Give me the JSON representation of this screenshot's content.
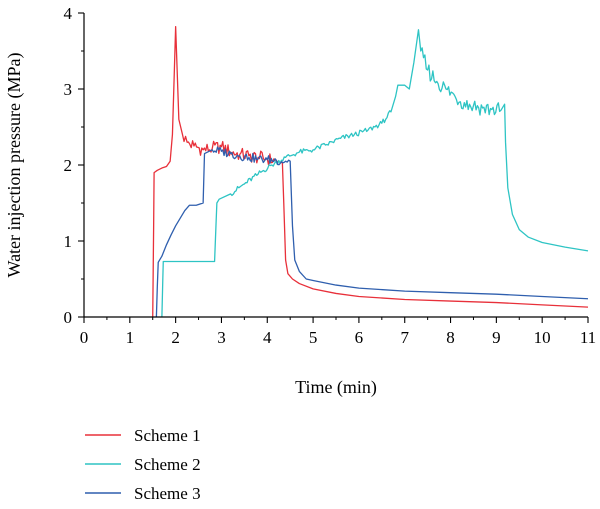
{
  "chart_data": {
    "type": "line",
    "title": "",
    "xlabel": "Time (min)",
    "ylabel": "Water injection pressure (MPa)",
    "xlim": [
      0,
      11
    ],
    "ylim": [
      0,
      4
    ],
    "x_ticks": [
      "0",
      "1",
      "2",
      "3",
      "4",
      "5",
      "6",
      "7",
      "8",
      "9",
      "10",
      "11"
    ],
    "y_ticks": [
      "0",
      "1",
      "2",
      "3",
      "4"
    ],
    "grid": false,
    "legend_position": "bottom-left, below plot",
    "series": [
      {
        "name": "Scheme 1",
        "color": "#e8303a",
        "points": [
          [
            1.5,
            0
          ],
          [
            1.52,
            1.2
          ],
          [
            1.53,
            1.9
          ],
          [
            1.6,
            1.93
          ],
          [
            1.7,
            1.96
          ],
          [
            1.8,
            1.98
          ],
          [
            1.88,
            2.05
          ],
          [
            1.93,
            2.4
          ],
          [
            1.97,
            3.2
          ],
          [
            2.0,
            3.82
          ],
          [
            2.03,
            3.3
          ],
          [
            2.07,
            2.6
          ],
          [
            2.15,
            2.4
          ],
          [
            2.25,
            2.3
          ],
          [
            2.4,
            2.25
          ],
          [
            2.6,
            2.2
          ],
          [
            2.8,
            2.22
          ],
          [
            3.0,
            2.24
          ],
          [
            3.2,
            2.17
          ],
          [
            3.4,
            2.14
          ],
          [
            3.6,
            2.12
          ],
          [
            3.8,
            2.1
          ],
          [
            4.0,
            2.08
          ],
          [
            4.2,
            2.05
          ],
          [
            4.33,
            2.03
          ],
          [
            4.36,
            1.5
          ],
          [
            4.4,
            0.75
          ],
          [
            4.45,
            0.57
          ],
          [
            4.55,
            0.5
          ],
          [
            4.7,
            0.44
          ],
          [
            5.0,
            0.37
          ],
          [
            5.5,
            0.31
          ],
          [
            6.0,
            0.27
          ],
          [
            7.0,
            0.23
          ],
          [
            8.0,
            0.21
          ],
          [
            9.0,
            0.19
          ],
          [
            10.0,
            0.16
          ],
          [
            11.0,
            0.13
          ]
        ]
      },
      {
        "name": "Scheme 2",
        "color": "#2ec4c4",
        "points": [
          [
            1.7,
            0
          ],
          [
            1.72,
            0.5
          ],
          [
            1.73,
            0.73
          ],
          [
            1.9,
            0.73
          ],
          [
            2.3,
            0.73
          ],
          [
            2.7,
            0.73
          ],
          [
            2.85,
            0.73
          ],
          [
            2.88,
            1.2
          ],
          [
            2.9,
            1.5
          ],
          [
            2.95,
            1.55
          ],
          [
            3.2,
            1.62
          ],
          [
            3.5,
            1.75
          ],
          [
            3.8,
            1.88
          ],
          [
            4.1,
            2.0
          ],
          [
            4.4,
            2.1
          ],
          [
            4.7,
            2.17
          ],
          [
            5.0,
            2.2
          ],
          [
            5.3,
            2.27
          ],
          [
            5.6,
            2.35
          ],
          [
            5.9,
            2.4
          ],
          [
            6.2,
            2.46
          ],
          [
            6.5,
            2.55
          ],
          [
            6.7,
            2.7
          ],
          [
            6.8,
            2.9
          ],
          [
            6.85,
            3.05
          ],
          [
            7.0,
            3.05
          ],
          [
            7.1,
            3.0
          ],
          [
            7.2,
            3.35
          ],
          [
            7.3,
            3.78
          ],
          [
            7.35,
            3.5
          ],
          [
            7.5,
            3.25
          ],
          [
            7.7,
            3.1
          ],
          [
            7.9,
            3.0
          ],
          [
            8.1,
            2.9
          ],
          [
            8.3,
            2.82
          ],
          [
            8.5,
            2.78
          ],
          [
            8.7,
            2.75
          ],
          [
            8.9,
            2.73
          ],
          [
            9.1,
            2.72
          ],
          [
            9.18,
            2.8
          ],
          [
            9.2,
            2.3
          ],
          [
            9.25,
            1.7
          ],
          [
            9.35,
            1.35
          ],
          [
            9.5,
            1.15
          ],
          [
            9.7,
            1.05
          ],
          [
            10.0,
            0.98
          ],
          [
            10.5,
            0.92
          ],
          [
            11.0,
            0.87
          ]
        ]
      },
      {
        "name": "Scheme 3",
        "color": "#2f5fae",
        "points": [
          [
            1.58,
            0
          ],
          [
            1.6,
            0.4
          ],
          [
            1.62,
            0.72
          ],
          [
            1.7,
            0.8
          ],
          [
            1.8,
            0.95
          ],
          [
            1.9,
            1.08
          ],
          [
            2.0,
            1.2
          ],
          [
            2.1,
            1.3
          ],
          [
            2.2,
            1.4
          ],
          [
            2.3,
            1.47
          ],
          [
            2.45,
            1.47
          ],
          [
            2.6,
            1.5
          ],
          [
            2.63,
            2.15
          ],
          [
            2.8,
            2.2
          ],
          [
            3.0,
            2.18
          ],
          [
            3.2,
            2.15
          ],
          [
            3.4,
            2.12
          ],
          [
            3.6,
            2.1
          ],
          [
            3.8,
            2.08
          ],
          [
            4.0,
            2.07
          ],
          [
            4.2,
            2.06
          ],
          [
            4.4,
            2.05
          ],
          [
            4.5,
            2.05
          ],
          [
            4.55,
            1.2
          ],
          [
            4.6,
            0.75
          ],
          [
            4.7,
            0.6
          ],
          [
            4.85,
            0.5
          ],
          [
            5.0,
            0.48
          ],
          [
            5.5,
            0.42
          ],
          [
            6.0,
            0.38
          ],
          [
            7.0,
            0.34
          ],
          [
            8.0,
            0.32
          ],
          [
            9.0,
            0.3
          ],
          [
            10.0,
            0.27
          ],
          [
            11.0,
            0.24
          ]
        ]
      }
    ]
  }
}
